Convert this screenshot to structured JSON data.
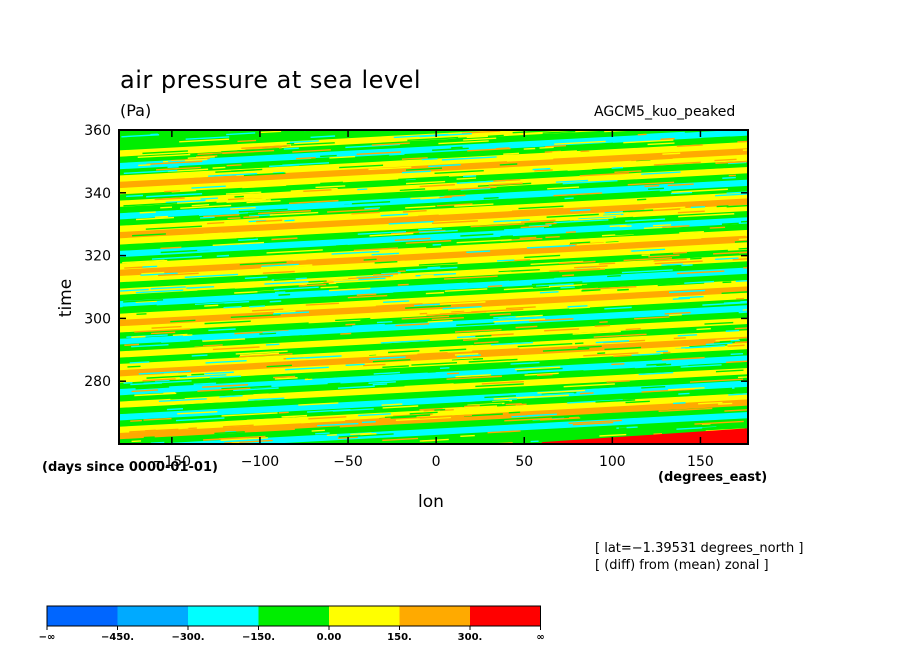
{
  "chart_data": {
    "type": "heatmap",
    "title": "air pressure at sea level",
    "units": "(Pa)",
    "run_label": "AGCM5_kuo_peaked",
    "xlabel": "lon",
    "ylabel": "time",
    "x_units": "(degrees_east)",
    "y_units": "(days since 0000-01-01)",
    "xlim": [
      -180,
      177
    ],
    "ylim": [
      260,
      360
    ],
    "x_ticks": [
      -150,
      -100,
      -50,
      0,
      50,
      100,
      150
    ],
    "x_tick_labels": [
      "−150",
      "−100",
      "−50",
      "0",
      "50",
      "100",
      "150"
    ],
    "y_ticks": [
      280,
      300,
      320,
      340,
      360
    ],
    "y_tick_labels": [
      "280",
      "300",
      "320",
      "340",
      "360"
    ],
    "notes": [
      "[ lat=−1.39531 degrees_north ]",
      "[ (diff) from (mean) zonal ]"
    ],
    "pattern": "eastward-tilted bands, drifting ~+3 days per 100 degrees of longitude",
    "colorbar": {
      "bins": [
        {
          "color": "#0066ff"
        },
        {
          "color": "#00aaff"
        },
        {
          "color": "#00ffff"
        },
        {
          "color": "#00ee00"
        },
        {
          "color": "#ffff00"
        },
        {
          "color": "#ffaa00"
        },
        {
          "color": "#ff0000"
        }
      ],
      "labels": [
        "−∞",
        "−450.",
        "−300.",
        "−150.",
        "0.00",
        "150.",
        "300.",
        "∞"
      ]
    },
    "bands": [
      {
        "t": 262,
        "color": "#00ee00"
      },
      {
        "t": 264,
        "color": "#00ffff"
      },
      {
        "t": 266,
        "color": "#00ee00"
      },
      {
        "t": 268,
        "color": "#ffaa00"
      },
      {
        "t": 270,
        "color": "#ffff00"
      },
      {
        "t": 272,
        "color": "#00ee00"
      },
      {
        "t": 274,
        "color": "#00ffff"
      },
      {
        "t": 276,
        "color": "#00ee00"
      },
      {
        "t": 278,
        "color": "#ffff00"
      },
      {
        "t": 280,
        "color": "#00ee00"
      },
      {
        "t": 282,
        "color": "#00ffff"
      },
      {
        "t": 284,
        "color": "#00ee00"
      },
      {
        "t": 286,
        "color": "#ffff00"
      },
      {
        "t": 288,
        "color": "#ffaa00"
      },
      {
        "t": 290,
        "color": "#ffff00"
      },
      {
        "t": 292,
        "color": "#00ee00"
      },
      {
        "t": 294,
        "color": "#ffff00"
      },
      {
        "t": 296,
        "color": "#00ee00"
      },
      {
        "t": 298,
        "color": "#00ffff"
      },
      {
        "t": 300,
        "color": "#00ee00"
      },
      {
        "t": 302,
        "color": "#ffff00"
      },
      {
        "t": 304,
        "color": "#ffaa00"
      },
      {
        "t": 306,
        "color": "#ffff00"
      },
      {
        "t": 308,
        "color": "#00ee00"
      },
      {
        "t": 310,
        "color": "#00ffff"
      },
      {
        "t": 312,
        "color": "#00ee00"
      },
      {
        "t": 314,
        "color": "#ffff00"
      },
      {
        "t": 316,
        "color": "#00ee00"
      },
      {
        "t": 318,
        "color": "#ffff00"
      },
      {
        "t": 320,
        "color": "#ffaa00"
      },
      {
        "t": 322,
        "color": "#ffff00"
      },
      {
        "t": 324,
        "color": "#00ee00"
      },
      {
        "t": 326,
        "color": "#00ffff"
      },
      {
        "t": 328,
        "color": "#00ee00"
      },
      {
        "t": 330,
        "color": "#ffff00"
      },
      {
        "t": 332,
        "color": "#ffaa00"
      },
      {
        "t": 334,
        "color": "#ffff00"
      },
      {
        "t": 336,
        "color": "#00ee00"
      },
      {
        "t": 338,
        "color": "#00ffff"
      },
      {
        "t": 340,
        "color": "#00ee00"
      },
      {
        "t": 342,
        "color": "#ffff00"
      },
      {
        "t": 344,
        "color": "#00ee00"
      },
      {
        "t": 346,
        "color": "#ffff00"
      },
      {
        "t": 348,
        "color": "#ffaa00"
      },
      {
        "t": 350,
        "color": "#ffff00"
      },
      {
        "t": 352,
        "color": "#00ee00"
      },
      {
        "t": 354,
        "color": "#00ffff"
      },
      {
        "t": 356,
        "color": "#00ee00"
      },
      {
        "t": 358,
        "color": "#ffff00"
      },
      {
        "t": 360,
        "color": "#00ee00"
      }
    ],
    "patches": [
      {
        "lon0": 60,
        "lon1": 177,
        "t0": 260,
        "t1": 264,
        "color": "#ff0000"
      }
    ]
  }
}
